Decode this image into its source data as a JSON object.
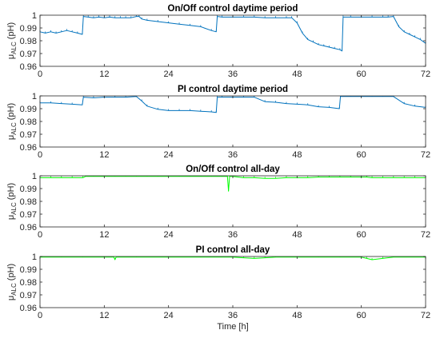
{
  "chart_data": [
    {
      "type": "line",
      "title": "On/Off control daytime period",
      "ylabel_prefix": "μ",
      "ylabel_sub": "ALC",
      "ylabel_suffix": " (pH)",
      "xlabel": "",
      "xlim": [
        0,
        72
      ],
      "ylim": [
        0.96,
        1
      ],
      "xticks": [
        0,
        12,
        24,
        36,
        48,
        60,
        72
      ],
      "yticks": [
        0.96,
        0.97,
        0.98,
        0.99,
        1
      ],
      "ytick_labels": [
        "0.96",
        "0.97",
        "0.98",
        "0.99",
        "1"
      ],
      "color": "#0072BD",
      "series": [
        {
          "x": [
            0,
            1,
            2,
            3,
            4,
            5,
            6,
            7,
            7.9,
            8.1,
            9,
            10,
            11,
            12,
            13,
            14,
            15,
            16,
            17,
            18,
            18.5,
            19,
            20,
            22,
            24,
            26,
            28,
            30,
            32,
            32.9,
            33.1,
            34,
            36,
            38,
            40,
            42,
            44,
            46,
            47,
            48,
            49,
            50,
            51,
            52,
            53,
            54,
            55,
            56,
            56.4,
            56.6,
            58,
            60,
            62,
            64,
            65,
            66,
            67,
            68,
            69,
            70,
            71,
            72
          ],
          "y": [
            0.987,
            0.986,
            0.987,
            0.986,
            0.987,
            0.988,
            0.987,
            0.986,
            0.985,
            0.999,
            0.9985,
            0.998,
            0.9985,
            0.998,
            0.9985,
            0.998,
            0.998,
            0.998,
            0.998,
            0.999,
            0.999,
            0.997,
            0.996,
            0.995,
            0.994,
            0.993,
            0.992,
            0.991,
            0.988,
            0.987,
            0.999,
            0.9985,
            0.9985,
            0.9985,
            0.9985,
            0.998,
            0.998,
            0.998,
            0.998,
            0.994,
            0.986,
            0.981,
            0.979,
            0.977,
            0.976,
            0.975,
            0.974,
            0.973,
            0.972,
            0.9985,
            0.9985,
            0.9985,
            0.9985,
            0.9985,
            0.9985,
            0.999,
            0.991,
            0.987,
            0.985,
            0.983,
            0.981,
            0.978
          ]
        }
      ]
    },
    {
      "type": "line",
      "title": "PI control daytime period",
      "ylabel_prefix": "μ",
      "ylabel_sub": "ALC",
      "ylabel_suffix": " (pH)",
      "xlabel": "",
      "xlim": [
        0,
        72
      ],
      "ylim": [
        0.96,
        1
      ],
      "xticks": [
        0,
        12,
        24,
        36,
        48,
        60,
        72
      ],
      "yticks": [
        0.96,
        0.97,
        0.98,
        0.99,
        1
      ],
      "ytick_labels": [
        "0.96",
        "0.97",
        "0.98",
        "0.99",
        "1"
      ],
      "color": "#0072BD",
      "series": [
        {
          "x": [
            0,
            2,
            4,
            6,
            7.9,
            8.1,
            10,
            12,
            14,
            16,
            18,
            19,
            20,
            22,
            24,
            26,
            28,
            30,
            32,
            32.9,
            33.1,
            34,
            36,
            38,
            40,
            42,
            44,
            46,
            48,
            50,
            52,
            54,
            55.9,
            56.1,
            58,
            60,
            62,
            64,
            66,
            68,
            70,
            72
          ],
          "y": [
            0.9945,
            0.9945,
            0.994,
            0.9935,
            0.993,
            0.999,
            0.9985,
            0.999,
            0.999,
            0.999,
            0.9995,
            0.996,
            0.992,
            0.9895,
            0.9885,
            0.9885,
            0.9885,
            0.988,
            0.9875,
            0.987,
            0.999,
            0.999,
            0.999,
            0.999,
            0.999,
            0.9955,
            0.995,
            0.994,
            0.9935,
            0.993,
            0.9915,
            0.991,
            0.99,
            0.9995,
            0.9995,
            0.9995,
            0.9995,
            0.9995,
            0.9995,
            0.994,
            0.992,
            0.991
          ]
        }
      ]
    },
    {
      "type": "line",
      "title": "On/Off control all-day",
      "ylabel_prefix": "μ",
      "ylabel_sub": "ALC",
      "ylabel_suffix": " (pH)",
      "xlabel": "",
      "xlim": [
        0,
        72
      ],
      "ylim": [
        0.96,
        1
      ],
      "xticks": [
        0,
        12,
        24,
        36,
        48,
        60,
        72
      ],
      "yticks": [
        0.96,
        0.97,
        0.98,
        0.99,
        1
      ],
      "ytick_labels": [
        "0.96",
        "0.97",
        "0.98",
        "0.99",
        "1"
      ],
      "color": "#00FF00",
      "series": [
        {
          "x": [
            0,
            2,
            4,
            6,
            8,
            8.5,
            10,
            12,
            14,
            16,
            18,
            20,
            22,
            24,
            26,
            28,
            30,
            32,
            34,
            35,
            35.2,
            35.4,
            36,
            38,
            40,
            42,
            44,
            46,
            48,
            50,
            52,
            54,
            56,
            58,
            60,
            61,
            62,
            64,
            66,
            68,
            70,
            72
          ],
          "y": [
            0.9985,
            0.9985,
            0.9985,
            0.9985,
            0.9985,
            0.9995,
            0.9995,
            0.9995,
            0.9995,
            0.9995,
            0.9995,
            0.9995,
            0.9995,
            0.9995,
            0.9995,
            0.9995,
            0.9995,
            0.9995,
            0.9995,
            0.9995,
            0.988,
            0.9995,
            0.9995,
            0.9985,
            0.9985,
            0.998,
            0.998,
            0.9985,
            0.9985,
            0.9985,
            0.999,
            0.999,
            0.999,
            0.999,
            0.999,
            0.999,
            0.9985,
            0.9985,
            0.9985,
            0.9985,
            0.9985,
            0.9985
          ]
        }
      ]
    },
    {
      "type": "line",
      "title": "PI control all-day",
      "ylabel_prefix": "μ",
      "ylabel_sub": "ALC",
      "ylabel_suffix": " (pH)",
      "xlabel": "Time [h]",
      "xlim": [
        0,
        72
      ],
      "ylim": [
        0.96,
        1
      ],
      "xticks": [
        0,
        12,
        24,
        36,
        48,
        60,
        72
      ],
      "yticks": [
        0.96,
        0.97,
        0.98,
        0.99,
        1
      ],
      "ytick_labels": [
        "0.96",
        "0.97",
        "0.98",
        "0.99",
        "1"
      ],
      "color": "#00FF00",
      "series": [
        {
          "x": [
            0,
            4,
            8,
            12,
            13.8,
            14,
            14.2,
            18,
            24,
            30,
            36,
            38,
            40,
            42,
            44,
            48,
            52,
            56,
            60,
            61,
            62,
            64,
            66,
            72
          ],
          "y": [
            0.9995,
            0.9995,
            0.9995,
            0.9995,
            0.9995,
            0.9975,
            0.9995,
            0.9995,
            0.9995,
            0.9995,
            0.9995,
            0.999,
            0.9985,
            0.999,
            0.9995,
            0.9995,
            0.9995,
            0.9995,
            0.9995,
            0.9985,
            0.9975,
            0.9985,
            0.9995,
            0.9995
          ]
        }
      ]
    }
  ]
}
